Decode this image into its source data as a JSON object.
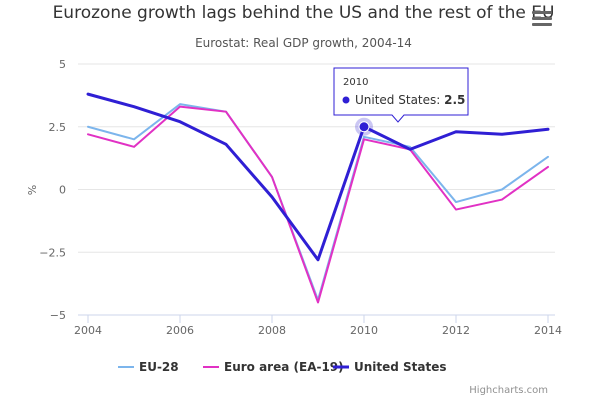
{
  "chart_data": {
    "type": "line",
    "title": "Eurozone growth lags behind the US and the rest of the EU",
    "subtitle": "Eurostat: Real GDP growth, 2004-14",
    "ylabel": "%",
    "xlabel": "",
    "x": [
      2004,
      2005,
      2006,
      2007,
      2008,
      2009,
      2010,
      2011,
      2012,
      2013,
      2014
    ],
    "xticks": [
      "2004",
      "2006",
      "2008",
      "2010",
      "2012",
      "2014"
    ],
    "yticks": [
      "5",
      "2.5",
      "0",
      "−2.5",
      "−5"
    ],
    "ylim": [
      -5,
      5
    ],
    "grid": true,
    "legend_position": "bottom",
    "series": [
      {
        "name": "EU-28",
        "color": "#7cb5ec",
        "values": [
          2.5,
          2.0,
          3.4,
          3.1,
          0.5,
          -4.4,
          2.1,
          1.7,
          -0.5,
          0.0,
          1.3
        ]
      },
      {
        "name": "Euro area (EA-19)",
        "color": "#e131c4",
        "values": [
          2.2,
          1.7,
          3.3,
          3.1,
          0.5,
          -4.5,
          2.0,
          1.6,
          -0.8,
          -0.4,
          0.9
        ]
      },
      {
        "name": "United States",
        "color": "#2f1fd4",
        "values": [
          3.8,
          3.3,
          2.7,
          1.8,
          -0.3,
          -2.8,
          2.5,
          1.6,
          2.3,
          2.2,
          2.4
        ]
      }
    ],
    "tooltip": {
      "header": "2010",
      "series_label": "United States:",
      "value": "2.5",
      "series_index": 2,
      "point_index": 6
    }
  },
  "credits": "Highcharts.com",
  "menu_icon": "hamburger-menu-icon"
}
